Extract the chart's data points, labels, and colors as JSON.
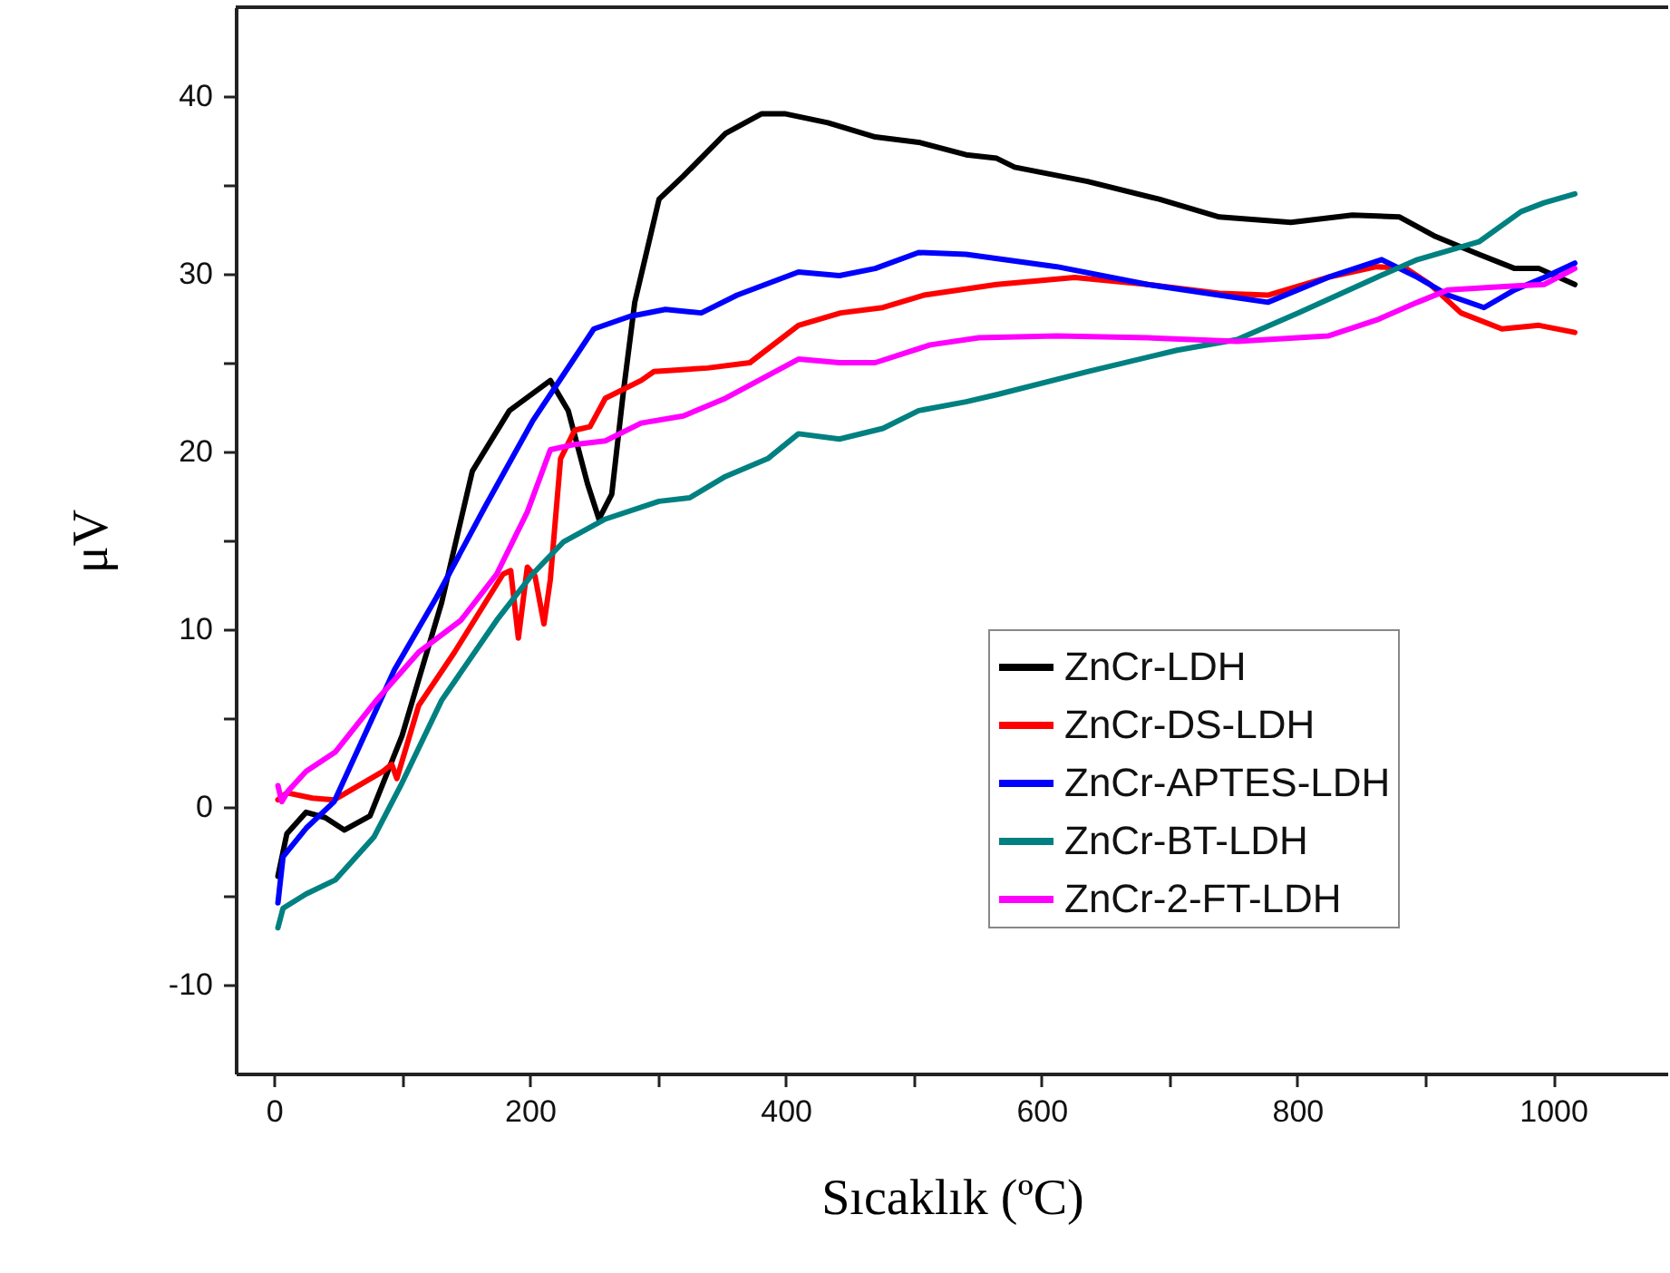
{
  "chart_data": {
    "type": "line",
    "xlabel": "Sıcaklık (ºC)",
    "ylabel": "μV",
    "xlim": [
      -30,
      1090
    ],
    "ylim": [
      -15,
      45
    ],
    "xticks": [
      0,
      {
        "value": 100,
        "label": null
      },
      200,
      {
        "value": 300,
        "label": null
      },
      400,
      {
        "value": 500,
        "label": null
      },
      600,
      {
        "value": 700,
        "label": null
      },
      800,
      {
        "value": 900,
        "label": null
      },
      1000
    ],
    "yticks": [
      -10,
      {
        "value": -5,
        "label": null
      },
      0,
      {
        "value": 5,
        "label": null
      },
      10,
      {
        "value": 15,
        "label": null
      },
      20,
      {
        "value": 25,
        "label": null
      },
      30,
      {
        "value": 35,
        "label": null
      },
      40
    ],
    "grid": false,
    "legend": "bottom right",
    "line_style": "solid",
    "series": [
      {
        "name": "ZnCr-LDH",
        "color": "#000000",
        "x": [
          3,
          10,
          25,
          40,
          55,
          75,
          100,
          131,
          155,
          184,
          216,
          230,
          245,
          254,
          264,
          273,
          282,
          301,
          320,
          353,
          381,
          400,
          433,
          470,
          504,
          541,
          565,
          579,
          636,
          692,
          739,
          795,
          843,
          880,
          908,
          942,
          970,
          989,
          1017
        ],
        "values": [
          -3.9,
          -1.5,
          -0.3,
          -0.6,
          -1.3,
          -0.5,
          4,
          11.5,
          18.9,
          22.3,
          24.0,
          22.3,
          18.2,
          16.2,
          17.6,
          23.3,
          28.4,
          34.2,
          35.5,
          37.9,
          39.0,
          39.0,
          38.5,
          37.7,
          37.4,
          36.7,
          36.5,
          36.0,
          35.2,
          34.2,
          33.2,
          32.9,
          33.3,
          33.2,
          32.1,
          31.1,
          30.3,
          30.3,
          29.4
        ]
      },
      {
        "name": "ZnCr-DS-LDH",
        "color": "#ff0000",
        "x": [
          3,
          10,
          30,
          47,
          85,
          92,
          96,
          113,
          141,
          179,
          185,
          191,
          198,
          204,
          211,
          216,
          224,
          235,
          247,
          259,
          287,
          297,
          339,
          372,
          410,
          443,
          476,
          508,
          565,
          626,
          683,
          739,
          777,
          824,
          862,
          885,
          904,
          928,
          960,
          989,
          1017
        ],
        "values": [
          0.4,
          0.8,
          0.5,
          0.4,
          2.0,
          2.4,
          1.6,
          5.7,
          8.7,
          13.1,
          13.3,
          9.5,
          13.5,
          13.0,
          10.3,
          12.8,
          19.6,
          21.2,
          21.4,
          23.0,
          24.0,
          24.5,
          24.7,
          25.0,
          27.1,
          27.8,
          28.1,
          28.8,
          29.4,
          29.8,
          29.4,
          28.9,
          28.8,
          29.8,
          30.4,
          30.3,
          29.4,
          27.8,
          26.9,
          27.1,
          26.7
        ]
      },
      {
        "name": "ZnCr-APTES-LDH",
        "color": "#0000ff",
        "x": [
          3,
          7,
          25,
          47,
          94,
          127,
          165,
          202,
          226,
          250,
          278,
          306,
          334,
          362,
          410,
          442,
          470,
          504,
          541,
          612,
          683,
          739,
          777,
          824,
          866,
          894,
          918,
          946,
          970,
          993,
          1017
        ],
        "values": [
          -5.4,
          -2.8,
          -1.2,
          0.3,
          7.7,
          11.8,
          16.9,
          21.7,
          24.3,
          26.9,
          27.6,
          28.0,
          27.8,
          28.8,
          30.1,
          29.9,
          30.3,
          31.2,
          31.1,
          30.4,
          29.4,
          28.8,
          28.4,
          29.8,
          30.8,
          29.8,
          28.8,
          28.1,
          29.1,
          29.8,
          30.6
        ]
      },
      {
        "name": "ZnCr-BT-LDH",
        "color": "#008080",
        "x": [
          3,
          7,
          25,
          48,
          78,
          99,
          131,
          174,
          202,
          226,
          259,
          301,
          325,
          353,
          386,
          410,
          442,
          476,
          504,
          541,
          565,
          636,
          706,
          753,
          801,
          862,
          894,
          942,
          975,
          993,
          1017
        ],
        "values": [
          -6.8,
          -5.7,
          -4.9,
          -4.1,
          -1.7,
          1.2,
          6.0,
          10.5,
          13.1,
          14.9,
          16.2,
          17.2,
          17.4,
          18.6,
          19.6,
          21.0,
          20.7,
          21.3,
          22.3,
          22.8,
          23.2,
          24.5,
          25.7,
          26.3,
          27.8,
          29.8,
          30.8,
          31.8,
          33.5,
          34.0,
          34.5
        ]
      },
      {
        "name": "ZnCr-2-FT-LDH",
        "color": "#ff00ff",
        "x": [
          3,
          6,
          11,
          25,
          48,
          80,
          113,
          146,
          174,
          198,
          216,
          235,
          259,
          287,
          320,
          353,
          410,
          442,
          470,
          513,
          551,
          612,
          683,
          753,
          824,
          862,
          894,
          918,
          965,
          993,
          1017
        ],
        "values": [
          1.2,
          0.3,
          0.9,
          2.0,
          3.1,
          6.0,
          8.7,
          10.5,
          13.1,
          16.6,
          20.1,
          20.4,
          20.6,
          21.6,
          22.0,
          23.0,
          25.2,
          25.0,
          25.0,
          26.0,
          26.4,
          26.5,
          26.4,
          26.2,
          26.5,
          27.4,
          28.4,
          29.1,
          29.3,
          29.4,
          30.3
        ]
      }
    ]
  }
}
